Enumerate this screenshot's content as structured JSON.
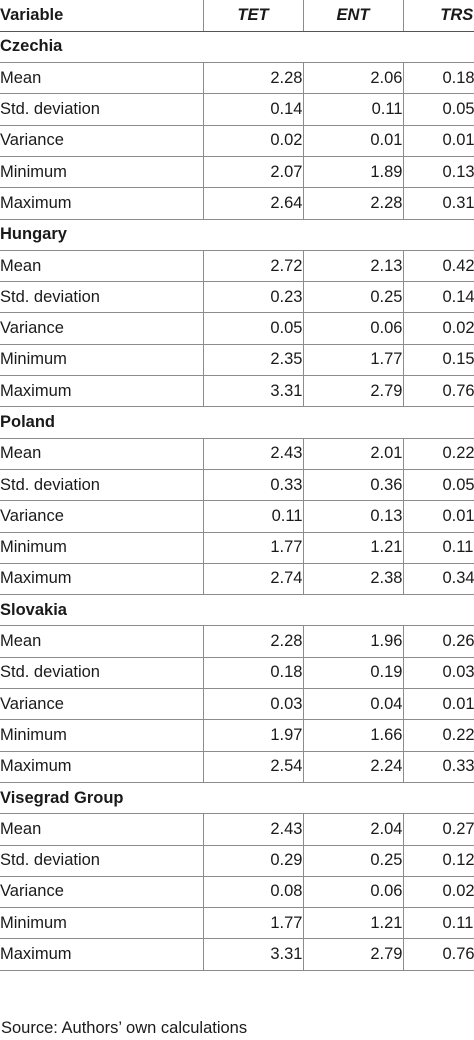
{
  "header": {
    "variable": "Variable",
    "columns": [
      "TET",
      "ENT",
      "TRS"
    ]
  },
  "groups": [
    {
      "name": "Czechia",
      "rows": [
        {
          "label": "Mean",
          "values": [
            "2.28",
            "2.06",
            "0.18"
          ]
        },
        {
          "label": "Std. deviation",
          "values": [
            "0.14",
            "0.11",
            "0.05"
          ]
        },
        {
          "label": "Variance",
          "values": [
            "0.02",
            "0.01",
            "0.01"
          ]
        },
        {
          "label": "Minimum",
          "values": [
            "2.07",
            "1.89",
            "0.13"
          ]
        },
        {
          "label": "Maximum",
          "values": [
            "2.64",
            "2.28",
            "0.31"
          ]
        }
      ]
    },
    {
      "name": "Hungary",
      "rows": [
        {
          "label": "Mean",
          "values": [
            "2.72",
            "2.13",
            "0.42"
          ]
        },
        {
          "label": "Std. deviation",
          "values": [
            "0.23",
            "0.25",
            "0.14"
          ]
        },
        {
          "label": "Variance",
          "values": [
            "0.05",
            "0.06",
            "0.02"
          ]
        },
        {
          "label": "Minimum",
          "values": [
            "2.35",
            "1.77",
            "0.15"
          ]
        },
        {
          "label": "Maximum",
          "values": [
            "3.31",
            "2.79",
            "0.76"
          ]
        }
      ]
    },
    {
      "name": "Poland",
      "rows": [
        {
          "label": "Mean",
          "values": [
            "2.43",
            "2.01",
            "0.22"
          ]
        },
        {
          "label": "Std. deviation",
          "values": [
            "0.33",
            "0.36",
            "0.05"
          ]
        },
        {
          "label": "Variance",
          "values": [
            "0.11",
            "0.13",
            "0.01"
          ]
        },
        {
          "label": "Minimum",
          "values": [
            "1.77",
            "1.21",
            "0.11"
          ]
        },
        {
          "label": "Maximum",
          "values": [
            "2.74",
            "2.38",
            "0.34"
          ]
        }
      ]
    },
    {
      "name": "Slovakia",
      "rows": [
        {
          "label": "Mean",
          "values": [
            "2.28",
            "1.96",
            "0.26"
          ]
        },
        {
          "label": "Std. deviation",
          "values": [
            "0.18",
            "0.19",
            "0.03"
          ]
        },
        {
          "label": "Variance",
          "values": [
            "0.03",
            "0.04",
            "0.01"
          ]
        },
        {
          "label": "Minimum",
          "values": [
            "1.97",
            "1.66",
            "0.22"
          ]
        },
        {
          "label": "Maximum",
          "values": [
            "2.54",
            "2.24",
            "0.33"
          ]
        }
      ]
    },
    {
      "name": "Visegrad Group",
      "rows": [
        {
          "label": "Mean",
          "values": [
            "2.43",
            "2.04",
            "0.27"
          ]
        },
        {
          "label": "Std. deviation",
          "values": [
            "0.29",
            "0.25",
            "0.12"
          ]
        },
        {
          "label": "Variance",
          "values": [
            "0.08",
            "0.06",
            "0.02"
          ]
        },
        {
          "label": "Minimum",
          "values": [
            "1.77",
            "1.21",
            "0.11"
          ]
        },
        {
          "label": "Maximum",
          "values": [
            "3.31",
            "2.79",
            "0.76"
          ]
        }
      ]
    }
  ],
  "source": "Source: Authors’ own calculations"
}
